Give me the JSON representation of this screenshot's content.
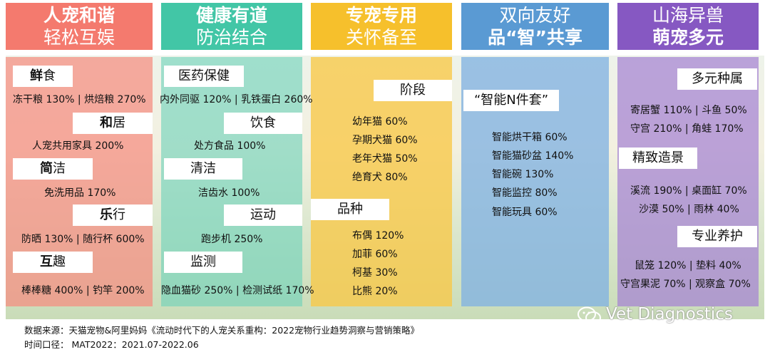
{
  "columns": [
    {
      "title_line1": "人宠和谐",
      "title_line2": "轻松互娱",
      "sections": [
        {
          "label_b": "鲜",
          "label_r": "食",
          "text": "冻干粮 130%  |  烘焙粮 270%"
        },
        {
          "label_b": "和",
          "label_r": "居",
          "text": "人宠共用家具 200%"
        },
        {
          "label_b": "简",
          "label_r": "洁",
          "text": "免洗用品 170%"
        },
        {
          "label_b": "乐",
          "label_r": "行",
          "text": "防晒 130% | 随行杯 600%"
        },
        {
          "label_b": "互",
          "label_r": "趣",
          "text": "棒棒糖 400% | 钓竿 200%"
        }
      ]
    },
    {
      "title_line1": "健康有道",
      "title_line2": "防治结合",
      "sections": [
        {
          "label": "医药保健",
          "text": "内外同驱 120% | 乳铁蛋白 260%"
        },
        {
          "label": "饮食",
          "text": "处方食品 100%"
        },
        {
          "label": "清洁",
          "text": "洁齿水 100%"
        },
        {
          "label": "运动",
          "text": "跑步机 250%"
        },
        {
          "label": "监测",
          "text": "隐血猫砂 250% | 检测试纸 170%"
        }
      ]
    },
    {
      "title_line1": "专宠专用",
      "title_line2": "关怀备至",
      "stage_label": "阶段",
      "stage_items": [
        "幼年猫 60%",
        "孕期犬猫 60%",
        "老年犬猫 50%",
        "绝育犬 80%"
      ],
      "breed_label": "品种",
      "breed_items": [
        "布偶 120%",
        "加菲 60%",
        "柯基 30%",
        "比熊 20%"
      ]
    },
    {
      "title_line1": "双向友好",
      "title_line2": "品“智”共享",
      "label": "“智能N件套”",
      "items": [
        "智能烘干箱 60%",
        "智能猫砂盆 140%",
        "智能碗 130%",
        "智能监控 80%",
        "智能玩具 60%"
      ]
    },
    {
      "title_line1": "山海异兽",
      "title_line2": "萌宠多元",
      "sections": [
        {
          "label": "多元种属",
          "lines": [
            "寄居蟹 110% | 斗鱼 50%",
            "守宫 210% | 角蛙 170%"
          ]
        },
        {
          "label": "精致造景",
          "lines": [
            "溪流 190% | 桌面缸 70%",
            "沙漠 50% | 雨林 40%"
          ]
        },
        {
          "label": "专业养护",
          "lines": [
            "鼠笼 120% | 垫料 40%",
            "守宫果泥 70% | 观察盒 70%"
          ]
        }
      ]
    }
  ],
  "colors": {
    "col1_header": "#f47a6e",
    "col1_bg": "#f7a89e",
    "col2_header": "#42c6a6",
    "col2_bg": "#8ddac6",
    "col3_header": "#f6c02c",
    "col3_bg": "#f8d36a",
    "col4_header": "#5a9ad3",
    "col4_bg": "#9cc2e6",
    "col5_header": "#8658c2",
    "col5_bg": "#b79ad8"
  },
  "footer": {
    "source": "数据来源：天猫宠物&阿里妈妈《流动时代下的人宠关系重构：2022宠物行业趋势洞察与营销策略》",
    "period": "时间口径： MAT2022：2021.07-2022.06"
  },
  "watermark": {
    "text": "Vet Diagnostics",
    "icon": "wechat-icon"
  }
}
